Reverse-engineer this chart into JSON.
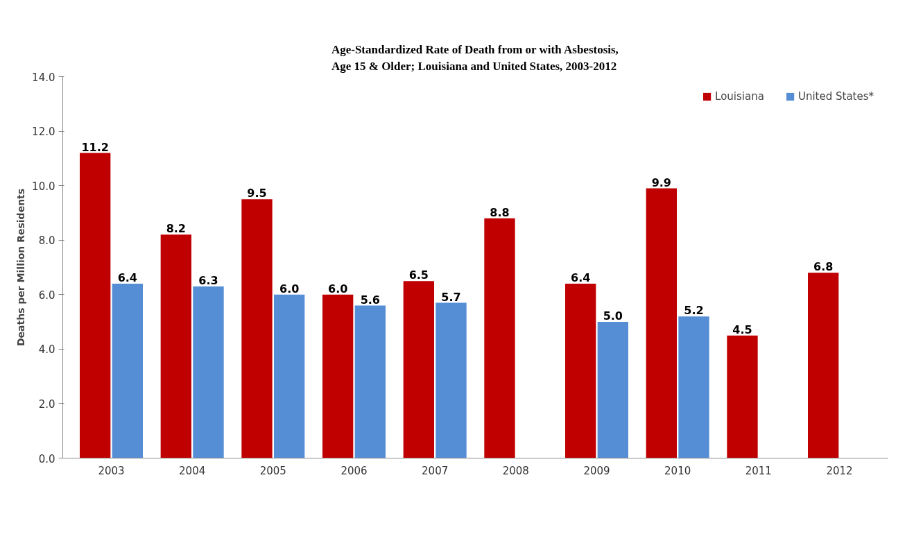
{
  "chart_data": {
    "type": "bar",
    "title": "Age-Standardized Rate of Death from or with Asbestosis,\nAge 15 & Older; Louisiana and United States, 2003-2012",
    "ylabel": "Deaths per Million Residents",
    "categories": [
      "2003",
      "2004",
      "2005",
      "2006",
      "2007",
      "2008",
      "2009",
      "2010",
      "2011",
      "2012"
    ],
    "series": [
      {
        "name": "Louisiana",
        "color": "#c00000",
        "values": [
          11.2,
          8.2,
          9.5,
          6.0,
          6.5,
          8.8,
          6.4,
          9.9,
          4.5,
          6.8
        ],
        "value_labels": [
          "11.2",
          "8.2",
          "9.5",
          "6.0",
          "6.5",
          "8.8",
          "6.4",
          "9.9",
          "4.5",
          "6.8"
        ]
      },
      {
        "name": "United States*",
        "color": "#558ed5",
        "values": [
          6.4,
          6.3,
          6.0,
          5.6,
          5.7,
          null,
          5.0,
          5.2,
          null,
          null
        ],
        "value_labels": [
          "6.4",
          "6.3",
          "6.0",
          "5.6",
          "5.7",
          null,
          "5.0",
          "5.2",
          null,
          null
        ]
      }
    ],
    "ylim": [
      0,
      14
    ],
    "yticks": [
      {
        "value": 0,
        "label": "0.0"
      },
      {
        "value": 2,
        "label": "2.0"
      },
      {
        "value": 4,
        "label": "4.0"
      },
      {
        "value": 6,
        "label": "6.0"
      },
      {
        "value": 8,
        "label": "8.0"
      },
      {
        "value": 10,
        "label": "10.0"
      },
      {
        "value": 12,
        "label": "12.0"
      },
      {
        "value": 14,
        "label": "14.0"
      }
    ],
    "grid": false,
    "legend": "top right"
  }
}
